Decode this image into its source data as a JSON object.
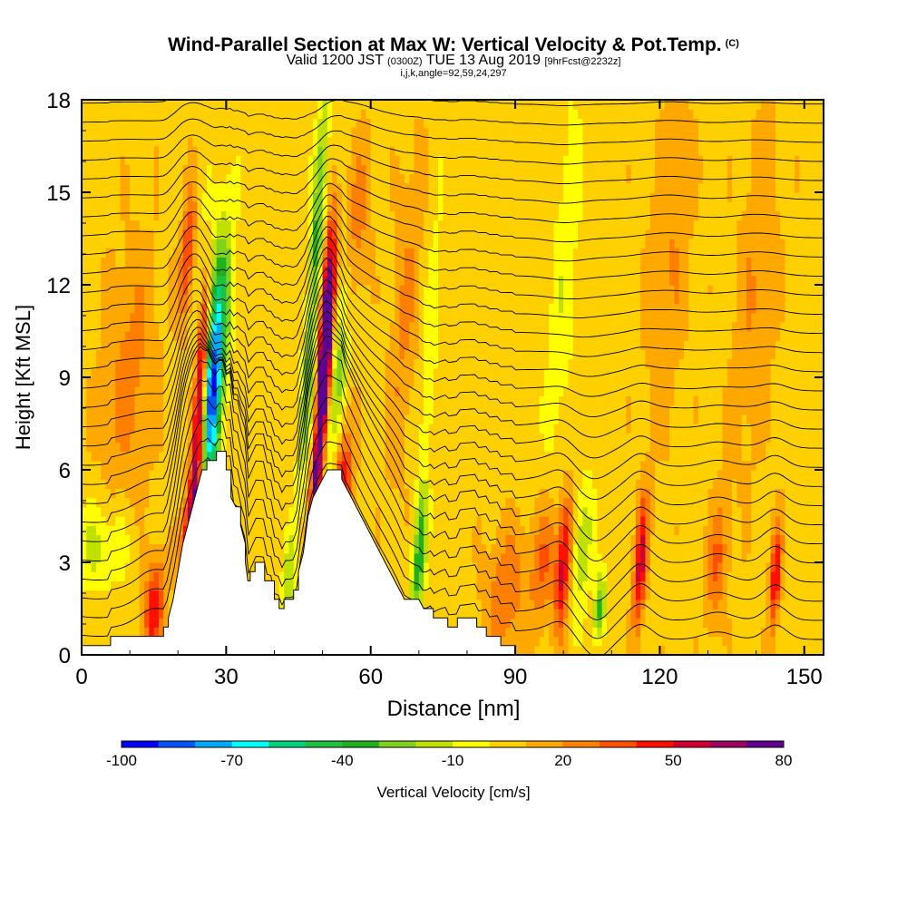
{
  "title": "Wind-Parallel Section at Max W: Vertical Velocity & Pot.Temp.",
  "title_mark": "(C)",
  "subtitle_main": "Valid 1200 JST",
  "subtitle_utc": "(0300Z)",
  "subtitle_date": "TUE 13 Aug 2019",
  "subtitle_fcst": "[9hrFcst@2232z]",
  "subsubtitle": "i,j,k,angle=92,59,24,297",
  "chart_data": {
    "type": "heatmap",
    "xlabel": "Distance [nm]",
    "ylabel": "Height [Kft MSL]",
    "xlim": [
      0,
      154
    ],
    "ylim": [
      0,
      18
    ],
    "x_ticks": [
      "0",
      "30",
      "60",
      "90",
      "120",
      "150"
    ],
    "y_ticks": [
      "0",
      "3",
      "6",
      "9",
      "12",
      "15",
      "18"
    ],
    "colorbar": {
      "label": "Vertical Velocity [cm/s]",
      "levels": [
        -100,
        -90,
        -80,
        -70,
        -60,
        -50,
        -40,
        -30,
        -20,
        -10,
        0,
        10,
        20,
        30,
        40,
        50,
        60,
        70,
        80
      ],
      "colors": [
        "#0000ff",
        "#0055ff",
        "#00aaff",
        "#00ffff",
        "#00d080",
        "#20c040",
        "#20b020",
        "#80d020",
        "#c0e000",
        "#ffff00",
        "#ffd000",
        "#ffa800",
        "#ff8000",
        "#ff5000",
        "#ff1000",
        "#d00030",
        "#a00060",
        "#600090"
      ],
      "tick_labels": [
        "-100",
        "-70",
        "-40",
        "-10",
        "20",
        "50",
        "80"
      ]
    },
    "terrain": [
      [
        0,
        0.3
      ],
      [
        6,
        0.3
      ],
      [
        6,
        0.6
      ],
      [
        14,
        0.6
      ],
      [
        17,
        0.6
      ],
      [
        17,
        0.9
      ],
      [
        18,
        0.9
      ],
      [
        18,
        1.2
      ],
      [
        19,
        1.8
      ],
      [
        20,
        2.7
      ],
      [
        21,
        3.6
      ],
      [
        22,
        4.2
      ],
      [
        23,
        4.8
      ],
      [
        24,
        5.4
      ],
      [
        25,
        6.0
      ],
      [
        26,
        6.0
      ],
      [
        26,
        6.3
      ],
      [
        28,
        6.3
      ],
      [
        28,
        6.6
      ],
      [
        30,
        6.6
      ],
      [
        30,
        6.0
      ],
      [
        31,
        6.0
      ],
      [
        31,
        5.1
      ],
      [
        32,
        4.8
      ],
      [
        33,
        4.8
      ],
      [
        33,
        4.2
      ],
      [
        34,
        3.6
      ],
      [
        34,
        3.0
      ],
      [
        34.5,
        2.4
      ],
      [
        35,
        2.4
      ],
      [
        35,
        2.7
      ],
      [
        36,
        2.7
      ],
      [
        36,
        3.0
      ],
      [
        38,
        3.0
      ],
      [
        38,
        2.4
      ],
      [
        40,
        2.4
      ],
      [
        40,
        1.8
      ],
      [
        41,
        1.8
      ],
      [
        41,
        1.5
      ],
      [
        42,
        1.5
      ],
      [
        42,
        1.8
      ],
      [
        44,
        1.8
      ],
      [
        44,
        2.1
      ],
      [
        45,
        2.1
      ],
      [
        45,
        2.7
      ],
      [
        46,
        3.3
      ],
      [
        46.5,
        3.9
      ],
      [
        47,
        4.5
      ],
      [
        48,
        5.1
      ],
      [
        49,
        5.4
      ],
      [
        50,
        5.7
      ],
      [
        51,
        6.0
      ],
      [
        52,
        6.0
      ],
      [
        54,
        6.0
      ],
      [
        54,
        5.7
      ],
      [
        55,
        5.4
      ],
      [
        56,
        5.1
      ],
      [
        57,
        4.8
      ],
      [
        58,
        4.5
      ],
      [
        59,
        4.2
      ],
      [
        60,
        3.9
      ],
      [
        61,
        3.6
      ],
      [
        62,
        3.3
      ],
      [
        63,
        3.0
      ],
      [
        64,
        2.7
      ],
      [
        65,
        2.4
      ],
      [
        66,
        2.1
      ],
      [
        67,
        1.8
      ],
      [
        70,
        1.8
      ],
      [
        71,
        1.5
      ],
      [
        73,
        1.5
      ],
      [
        73,
        1.2
      ],
      [
        76,
        1.2
      ],
      [
        76,
        0.9
      ],
      [
        78,
        0.9
      ],
      [
        78,
        1.2
      ],
      [
        82,
        1.2
      ],
      [
        82,
        0.9
      ],
      [
        84,
        0.9
      ],
      [
        84,
        0.6
      ],
      [
        87,
        0.6
      ],
      [
        87,
        0.3
      ],
      [
        90,
        0.3
      ],
      [
        90,
        0.0
      ],
      [
        154,
        0.0
      ]
    ],
    "features": [
      {
        "x": 23.5,
        "z": 4.5,
        "w": 60,
        "sx": 1.0,
        "sz": 2.0
      },
      {
        "x": 25.0,
        "z": 9.5,
        "w": 65,
        "sx": 0.8,
        "sz": 2.5
      },
      {
        "x": 21.5,
        "z": 3.0,
        "w": 45,
        "sx": 0.8,
        "sz": 1.5
      },
      {
        "x": 27.0,
        "z": 8.5,
        "w": -80,
        "sx": 1.3,
        "sz": 2.5
      },
      {
        "x": 29.0,
        "z": 10.5,
        "w": -30,
        "sx": 1.5,
        "sz": 3.0
      },
      {
        "x": 22.0,
        "z": 13.0,
        "w": 35,
        "sx": 1.0,
        "sz": 1.5
      },
      {
        "x": 26.0,
        "z": 12.5,
        "w": -20,
        "sx": 1.2,
        "sz": 2.0
      },
      {
        "x": 15.0,
        "z": 1.5,
        "w": 40,
        "sx": 1.5,
        "sz": 1.2
      },
      {
        "x": 4.0,
        "z": 3.5,
        "w": -20,
        "sx": 4.0,
        "sz": 1.0
      },
      {
        "x": 10.0,
        "z": 9.0,
        "w": 18,
        "sx": 4.0,
        "sz": 3.0
      },
      {
        "x": 50.5,
        "z": 9.5,
        "w": 80,
        "sx": 0.9,
        "sz": 2.5
      },
      {
        "x": 51.0,
        "z": 11.0,
        "w": 50,
        "sx": 1.0,
        "sz": 2.0
      },
      {
        "x": 48.5,
        "z": 5.5,
        "w": 55,
        "sx": 0.7,
        "sz": 1.2
      },
      {
        "x": 54.0,
        "z": 5.5,
        "w": 45,
        "sx": 1.5,
        "sz": 1.5
      },
      {
        "x": 53.0,
        "z": 9.0,
        "w": -30,
        "sx": 1.5,
        "sz": 3.0
      },
      {
        "x": 49.0,
        "z": 14.0,
        "w": -40,
        "sx": 1.0,
        "sz": 3.0
      },
      {
        "x": 46.5,
        "z": 8.0,
        "w": -25,
        "sx": 1.0,
        "sz": 2.0
      },
      {
        "x": 43.0,
        "z": 2.5,
        "w": -25,
        "sx": 1.0,
        "sz": 1.0
      },
      {
        "x": 57.0,
        "z": 14.0,
        "w": 20,
        "sx": 2.0,
        "sz": 2.0
      },
      {
        "x": 70.0,
        "z": 3.0,
        "w": -40,
        "sx": 1.0,
        "sz": 1.5
      },
      {
        "x": 72.0,
        "z": 9.0,
        "w": -15,
        "sx": 1.0,
        "sz": 4.0
      },
      {
        "x": 67.0,
        "z": 11.0,
        "w": 15,
        "sx": 2.0,
        "sz": 4.0
      },
      {
        "x": 100.0,
        "z": 3.0,
        "w": 50,
        "sx": 1.0,
        "sz": 1.5
      },
      {
        "x": 96.0,
        "z": 3.0,
        "w": 25,
        "sx": 2.0,
        "sz": 1.5
      },
      {
        "x": 104.0,
        "z": 3.5,
        "w": -25,
        "sx": 1.3,
        "sz": 1.5
      },
      {
        "x": 107.5,
        "z": 1.5,
        "w": -40,
        "sx": 0.8,
        "sz": 0.8
      },
      {
        "x": 116.0,
        "z": 3.0,
        "w": 50,
        "sx": 0.9,
        "sz": 1.5
      },
      {
        "x": 132.0,
        "z": 3.0,
        "w": 25,
        "sx": 1.5,
        "sz": 1.5
      },
      {
        "x": 144.0,
        "z": 2.5,
        "w": 45,
        "sx": 0.8,
        "sz": 1.2
      },
      {
        "x": 88.0,
        "z": 2.0,
        "w": 22,
        "sx": 3.0,
        "sz": 1.5
      },
      {
        "x": 122.0,
        "z": 13.0,
        "w": 14,
        "sx": 3.0,
        "sz": 4.0
      },
      {
        "x": 140.0,
        "z": 12.0,
        "w": 14,
        "sx": 3.0,
        "sz": 4.0
      },
      {
        "x": 100.0,
        "z": 12.0,
        "w": -13,
        "sx": 2.0,
        "sz": 5.0
      }
    ]
  }
}
